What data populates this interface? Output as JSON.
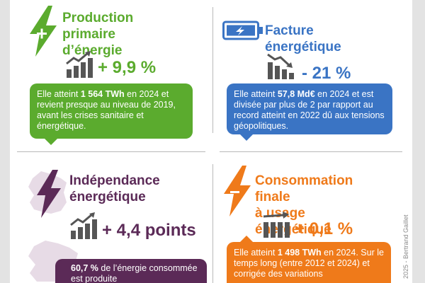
{
  "colors": {
    "green": "#5bab2e",
    "blue": "#3a74c4",
    "purple": "#5b2a57",
    "orange": "#ef7a1a",
    "dark_text": "#333333"
  },
  "sections": {
    "production": {
      "title_line1": "Production primaire",
      "title_line2": "d’énergie",
      "metric": "+ 9,9 %",
      "trend": "up",
      "bubble_pre": "Elle atteint ",
      "bubble_bold": "1 564 TWh",
      "bubble_post": " en 2024 et revient presque au niveau de 2019, avant les crises sanitaire et énergétique.",
      "icon": "lightning-plus-icon"
    },
    "facture": {
      "title": "Facture énergétique",
      "metric": "- 21 %",
      "trend": "down",
      "bubble_pre": "Elle atteint ",
      "bubble_bold": "57,8 Md€",
      "bubble_post": " en 2024 et est divisée par plus de 2 par rapport au record atteint en 2022 dû aux tensions géopolitiques.",
      "icon": "battery-lightning-icon"
    },
    "independance": {
      "title_line1": "Indépendance",
      "title_line2": "énergétique",
      "metric": "+ 4,4 points",
      "trend": "up",
      "bubble_bold": "60,7 %",
      "bubble_post": " de l’énergie consommée est produite",
      "icon": "france-lightning-icon"
    },
    "consommation": {
      "title_line1": "Consommation finale",
      "title_line2": "à usage énergétique",
      "metric": "+ 0,1 %",
      "trend": "flat",
      "bubble_pre": "Elle atteint ",
      "bubble_bold": "1 498 TWh",
      "bubble_post": " en 2024. Sur le temps long (entre 2012 et 2024) et corrigée des variations",
      "icon": "lightning-minus-icon"
    }
  },
  "credit": "2025 - Bertrand Gaillet"
}
